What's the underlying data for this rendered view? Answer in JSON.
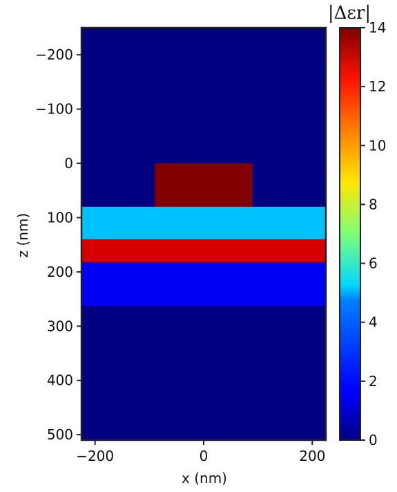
{
  "chart_data": {
    "type": "heatmap",
    "xlabel": "x (nm)",
    "ylabel": "z (nm)",
    "xlim": [
      -225,
      225
    ],
    "zlim": [
      -250,
      510
    ],
    "z_inverted": true,
    "x_ticks": [
      -200,
      0,
      200
    ],
    "z_ticks": [
      -200,
      -100,
      0,
      100,
      200,
      300,
      400,
      500
    ],
    "colorbar": {
      "title": "|Δεr|",
      "range": [
        0,
        14
      ],
      "ticks": [
        0,
        2,
        4,
        6,
        8,
        10,
        12,
        14
      ],
      "colormap": "jet"
    },
    "background_value": 0,
    "regions": [
      {
        "name": "rectangle",
        "x": [
          -90,
          90
        ],
        "z": [
          0,
          80
        ],
        "value": 14
      },
      {
        "name": "layer-1",
        "x": [
          -225,
          225
        ],
        "z": [
          80,
          140
        ],
        "value": 4.4
      },
      {
        "name": "layer-2",
        "x": [
          -225,
          225
        ],
        "z": [
          140,
          182
        ],
        "value": 12.8
      },
      {
        "name": "layer-3",
        "x": [
          -225,
          225
        ],
        "z": [
          182,
          262
        ],
        "value": 1.6
      }
    ]
  }
}
